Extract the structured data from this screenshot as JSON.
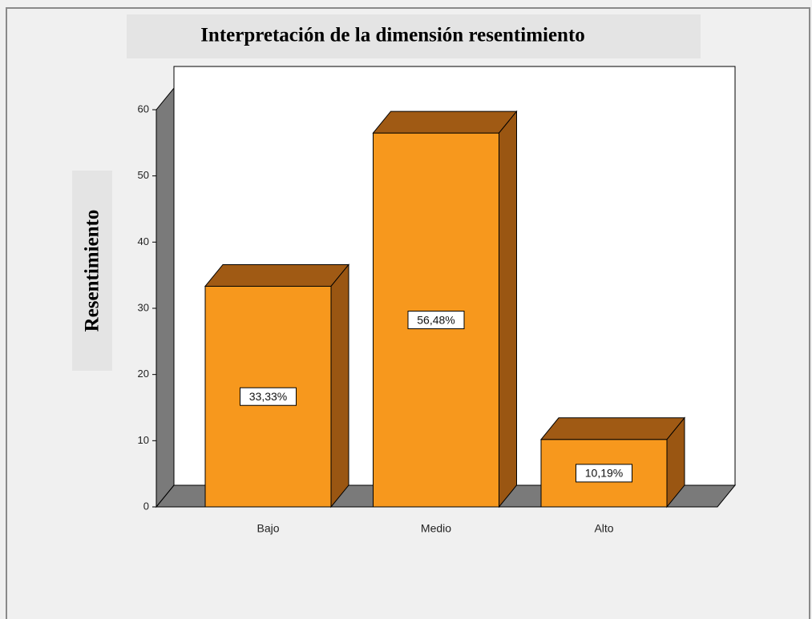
{
  "chart_data": {
    "type": "bar3d",
    "title": "Interpretación de la dimensión  resentimiento",
    "y_label": "Resentimiento",
    "categories": [
      "Bajo",
      "Medio",
      "Alto"
    ],
    "values": [
      33.33,
      56.48,
      10.19
    ],
    "value_labels": [
      "33,33%",
      "56,48%",
      "10,19%"
    ],
    "color": "#f7981d",
    "ylim": [
      0,
      60
    ],
    "yticks": [
      0,
      10,
      20,
      30,
      40,
      50,
      60
    ]
  }
}
